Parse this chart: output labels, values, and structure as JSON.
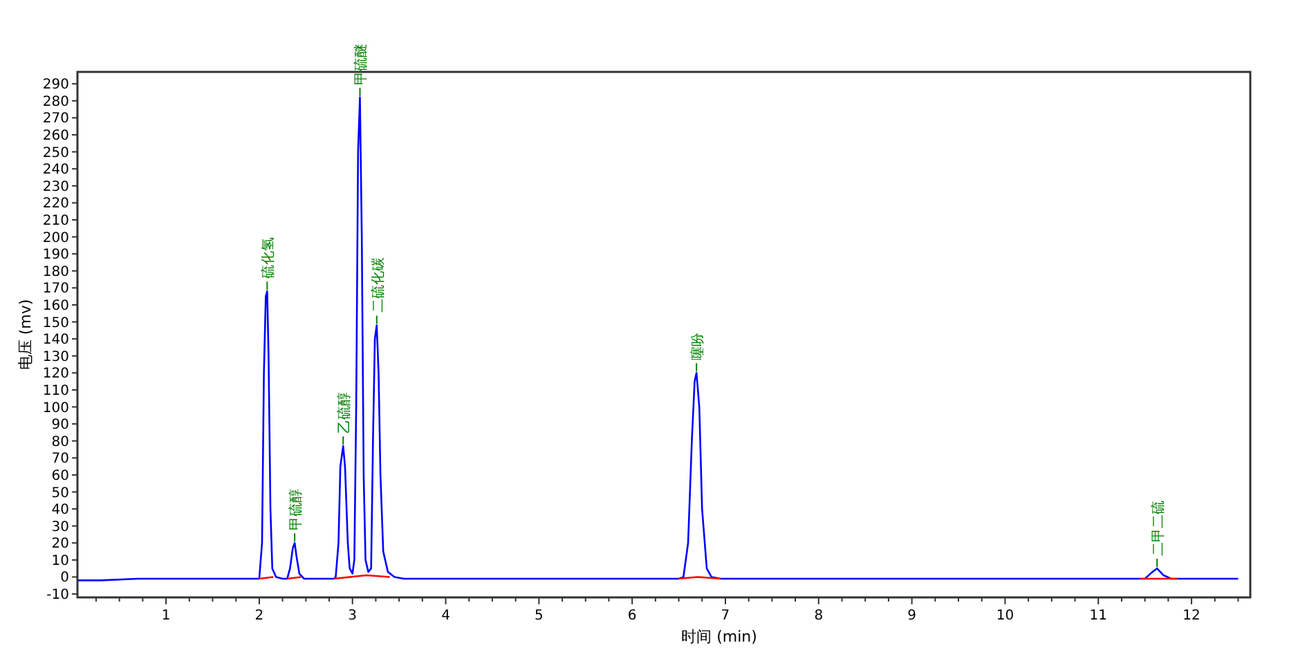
{
  "chart_data": {
    "type": "line",
    "xlabel": "时间 (min)",
    "ylabel": "电压 (mv)",
    "xlim": [
      0.05,
      12.63
    ],
    "ylim": [
      -12,
      297
    ],
    "xticks": [
      {
        "value": 0.25,
        "label": null
      },
      {
        "value": 0.5,
        "label": null
      },
      {
        "value": 0.75,
        "label": null
      },
      1,
      {
        "value": 1.25,
        "label": null
      },
      {
        "value": 1.5,
        "label": null
      },
      {
        "value": 1.75,
        "label": null
      },
      2,
      {
        "value": 2.25,
        "label": null
      },
      {
        "value": 2.5,
        "label": null
      },
      {
        "value": 2.75,
        "label": null
      },
      3,
      {
        "value": 3.25,
        "label": null
      },
      {
        "value": 3.5,
        "label": null
      },
      {
        "value": 3.75,
        "label": null
      },
      4,
      {
        "value": 4.25,
        "label": null
      },
      {
        "value": 4.5,
        "label": null
      },
      {
        "value": 4.75,
        "label": null
      },
      5,
      {
        "value": 5.25,
        "label": null
      },
      {
        "value": 5.5,
        "label": null
      },
      {
        "value": 5.75,
        "label": null
      },
      6,
      {
        "value": 6.25,
        "label": null
      },
      {
        "value": 6.5,
        "label": null
      },
      {
        "value": 6.75,
        "label": null
      },
      7,
      {
        "value": 7.25,
        "label": null
      },
      {
        "value": 7.5,
        "label": null
      },
      {
        "value": 7.75,
        "label": null
      },
      8,
      {
        "value": 8.25,
        "label": null
      },
      {
        "value": 8.5,
        "label": null
      },
      {
        "value": 8.75,
        "label": null
      },
      9,
      {
        "value": 9.25,
        "label": null
      },
      {
        "value": 9.5,
        "label": null
      },
      {
        "value": 9.75,
        "label": null
      },
      10,
      {
        "value": 10.25,
        "label": null
      },
      {
        "value": 10.5,
        "label": null
      },
      {
        "value": 10.75,
        "label": null
      },
      11,
      {
        "value": 11.25,
        "label": null
      },
      {
        "value": 11.5,
        "label": null
      },
      {
        "value": 11.75,
        "label": null
      },
      12,
      {
        "value": 12.25,
        "label": null
      },
      {
        "value": 12.5,
        "label": null
      }
    ],
    "yticks": [
      -10,
      0,
      10,
      20,
      30,
      40,
      50,
      60,
      70,
      80,
      90,
      100,
      110,
      120,
      130,
      140,
      150,
      160,
      170,
      180,
      190,
      200,
      210,
      220,
      230,
      240,
      250,
      260,
      270,
      280,
      290
    ],
    "grid": false,
    "marker": "none",
    "line_style": "solid",
    "series": [
      {
        "color": "#0000ff",
        "x": [
          0.05,
          0.3,
          0.7,
          1.0,
          2.0,
          2.03,
          2.05,
          2.07,
          2.085,
          2.1,
          2.12,
          2.14,
          2.18,
          2.25,
          2.3,
          2.33,
          2.36,
          2.38,
          2.4,
          2.43,
          2.48,
          2.8,
          2.82,
          2.85,
          2.87,
          2.9,
          2.92,
          2.95,
          2.97,
          3.0,
          3.02,
          3.04,
          3.06,
          3.08,
          3.1,
          3.12,
          3.14,
          3.17,
          3.2,
          3.22,
          3.24,
          3.26,
          3.28,
          3.3,
          3.33,
          3.38,
          3.45,
          3.55,
          6.5,
          6.55,
          6.6,
          6.64,
          6.67,
          6.69,
          6.72,
          6.75,
          6.8,
          6.85,
          6.95,
          11.5,
          11.58,
          11.63,
          11.7,
          11.78,
          12.5
        ],
        "values": [
          -2,
          -2,
          -1,
          -1,
          -1,
          20,
          120,
          165,
          168,
          130,
          40,
          5,
          0,
          -1,
          -1,
          5,
          17,
          20,
          12,
          2,
          -1,
          -1,
          0,
          20,
          65,
          77,
          65,
          20,
          5,
          2,
          10,
          100,
          250,
          282,
          200,
          60,
          10,
          3,
          5,
          80,
          140,
          148,
          120,
          60,
          15,
          3,
          0,
          -1,
          -1,
          0,
          20,
          80,
          115,
          120,
          100,
          40,
          5,
          0,
          -1,
          -1,
          3,
          5,
          1,
          -1,
          -1
        ]
      },
      {
        "color": "#ff0000",
        "x": [
          2.0,
          2.15,
          2.2,
          2.3,
          2.45,
          2.5,
          2.8,
          3.15,
          3.4,
          3.5,
          6.5,
          6.7,
          6.95,
          7.0,
          11.45,
          11.85
        ],
        "values": [
          -1,
          0,
          null,
          -1,
          0,
          null,
          -1,
          1,
          0,
          null,
          -1,
          0,
          -1,
          null,
          -1,
          -1
        ]
      }
    ],
    "annotations": [
      {
        "text": "硫化氢",
        "x": 2.085,
        "y": 168
      },
      {
        "text": "甲硫醇",
        "x": 2.38,
        "y": 20
      },
      {
        "text": "乙硫醇",
        "x": 2.9,
        "y": 77
      },
      {
        "text": "甲硫醚",
        "x": 3.08,
        "y": 282
      },
      {
        "text": "二硫化碳",
        "x": 3.26,
        "y": 148
      },
      {
        "text": "噻吩",
        "x": 6.69,
        "y": 120
      },
      {
        "text": "二甲二硫",
        "x": 11.63,
        "y": 5
      }
    ]
  }
}
